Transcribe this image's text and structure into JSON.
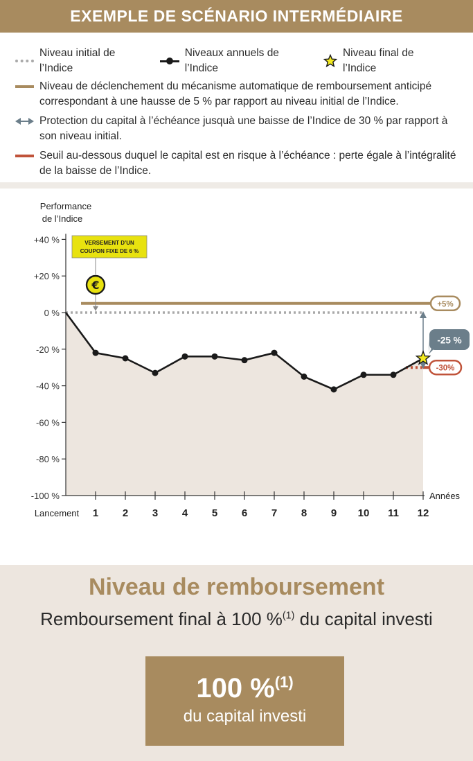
{
  "header": {
    "title": "EXEMPLE DE SCÉNARIO INTERMÉDIAIRE"
  },
  "legend": {
    "initial": "Niveau initial de l’Indice",
    "annual": "Niveaux annuels de l’Indice",
    "final": "Niveau final de l’Indice",
    "trigger": "Niveau de déclenchement du mécanisme automatique de remboursement anticipé correspondant à une hausse de 5 % par rapport au niveau initial de l’Indice.",
    "protection": "Protection du capital à l’échéance jusquà une baisse de l’Indice de 30 % par rapport à son niveau initial.",
    "threshold": "Seuil au-dessous duquel le capital est en risque à l’échéance : perte égale à l’intégralité de la baisse de l’Indice."
  },
  "colors": {
    "gold": "#a88b5f",
    "red": "#c0533a",
    "dark": "#1a1a1a",
    "grey": "#a9a9a9",
    "slate": "#6b7e8a",
    "area": "#ede6df",
    "yellow": "#e8e20f"
  },
  "chart_data": {
    "type": "line",
    "ylabel": "Performance de l’Indice",
    "xlabel": "Années",
    "ylim": [
      -100,
      40
    ],
    "y_ticks": [
      {
        "value": 40,
        "label": "+40 %"
      },
      {
        "value": 20,
        "label": "+20 %"
      },
      {
        "value": 0,
        "label": "0 %"
      },
      {
        "value": -20,
        "label": "-20 %"
      },
      {
        "value": -40,
        "label": "-40 %"
      },
      {
        "value": -60,
        "label": "-60 %"
      },
      {
        "value": -80,
        "label": "-80 %"
      },
      {
        "value": -100,
        "label": "-100 %"
      }
    ],
    "categories": [
      "Lancement",
      "1",
      "2",
      "3",
      "4",
      "5",
      "6",
      "7",
      "8",
      "9",
      "10",
      "11",
      "12"
    ],
    "series": [
      {
        "name": "Niveaux annuels de l’Indice",
        "values": [
          0,
          -22,
          -25,
          -33,
          -24,
          -24,
          -26,
          -22,
          -35,
          -42,
          -34,
          -34,
          -25
        ]
      }
    ],
    "trigger_level": 5,
    "trigger_label": "+5%",
    "barrier_level": -30,
    "barrier_label": "-30%",
    "final_value": -25,
    "final_label": "-25 %",
    "coupon_callout": "VERSEMENT D’UN COUPON FIXE DE 6 %",
    "coupon_icon": "€",
    "grid": false
  },
  "result": {
    "title": "Niveau de remboursement",
    "subtitle_pre": "Remboursement final à 100 %",
    "subtitle_sup": "(1)",
    "subtitle_post": " du capital investi",
    "box_value": "100 %",
    "box_sup": "(1)",
    "box_text": "du capital investi"
  }
}
